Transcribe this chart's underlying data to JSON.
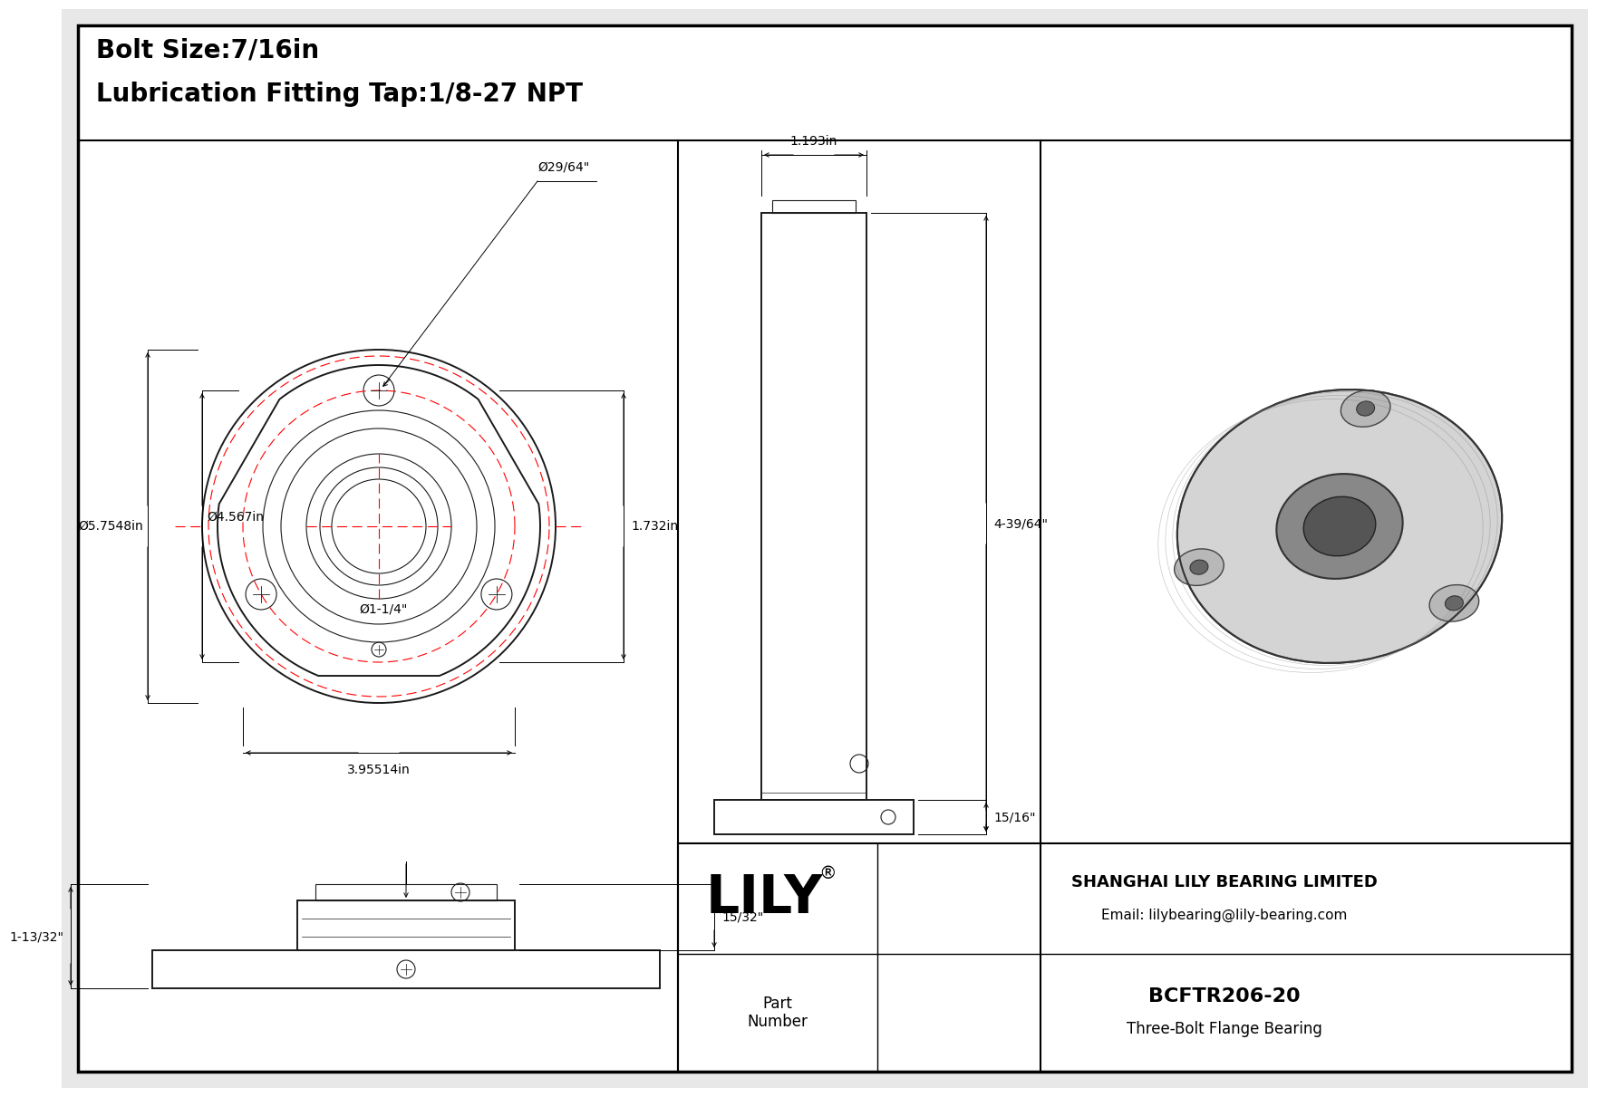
{
  "bg_color": "#e8e8e8",
  "title_line1": "Bolt Size:7/16in",
  "title_line2": "Lubrication Fitting Tap:1/8-27 NPT",
  "title_fontsize": 20,
  "dim_fontsize": 10,
  "company_name": "SHANGHAI LILY BEARING LIMITED",
  "company_email": "Email: lilybearing@lily-bearing.com",
  "part_label": "Part\nNumber",
  "part_number": "BCFTR206-20",
  "part_desc": "Three-Bolt Flange Bearing",
  "logo_text": "LILY",
  "dim_od": "Ø5.7548in",
  "dim_id": "Ø4.567in",
  "dim_bore": "Ø1-1/4\"",
  "dim_bolt_hole": "Ø29/64\"",
  "dim_bcd": "3.95514in",
  "dim_height": "1.732in",
  "dim_side_width": "1.193in",
  "dim_side_height": "4-39/64\"",
  "dim_side_bot": "15/16\"",
  "dim_front_depth": "1-13/32\"",
  "dim_front_top": "15/32\"",
  "red_color": "#ff0000",
  "draw_color": "#1a1a1a",
  "dim_color": "#000000",
  "lw_main": 1.4,
  "lw_thin": 0.8,
  "lw_dim": 0.7
}
